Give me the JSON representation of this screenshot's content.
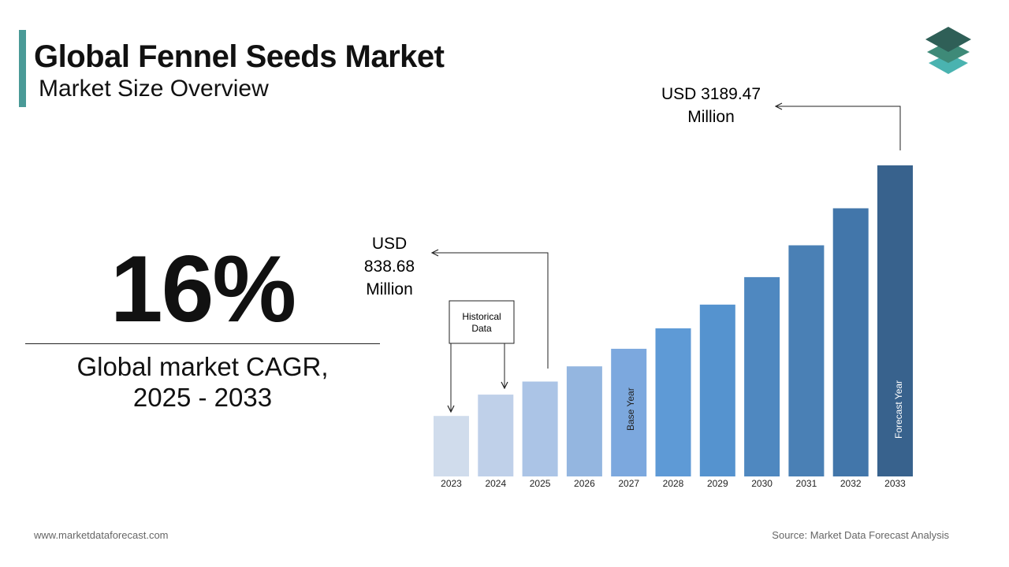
{
  "header": {
    "title": "Global Fennel Seeds Market",
    "subtitle": "Market Size Overview"
  },
  "cagr": {
    "value": "16%",
    "label_line1": "Global market CAGR,",
    "label_line2": "2025 - 2033"
  },
  "callouts": {
    "start_value_line1": "USD",
    "start_value_line2": "838.68",
    "start_value_line3": "Million",
    "end_value_line1": "USD 3189.47",
    "end_value_line2": "Million",
    "historical_line1": "Historical",
    "historical_line2": "Data",
    "base_year": "Base Year",
    "forecast_year": "Forecast Year"
  },
  "footer": {
    "website": "www.marketdataforecast.com",
    "source": "Source: Market Data Forecast Analysis"
  },
  "colors": {
    "accent": "#4a9a97",
    "bars": [
      "#d0dcec",
      "#bfd0e9",
      "#abc4e6",
      "#94b6e0",
      "#7ca8de",
      "#5e9ad6",
      "#5593cf",
      "#4f88c0",
      "#4a80b5",
      "#4276aa",
      "#38628d"
    ]
  },
  "chart_data": {
    "type": "bar",
    "categories": [
      "2023",
      "2024",
      "2025",
      "2026",
      "2027",
      "2028",
      "2029",
      "2030",
      "2031",
      "2032",
      "2033"
    ],
    "values": [
      620,
      838.68,
      972.87,
      1128.53,
      1309.09,
      1518.55,
      1761.52,
      2043.36,
      2370.3,
      2749.55,
      3189.47
    ],
    "units": "USD Million",
    "legend": "none",
    "grid": false
  }
}
